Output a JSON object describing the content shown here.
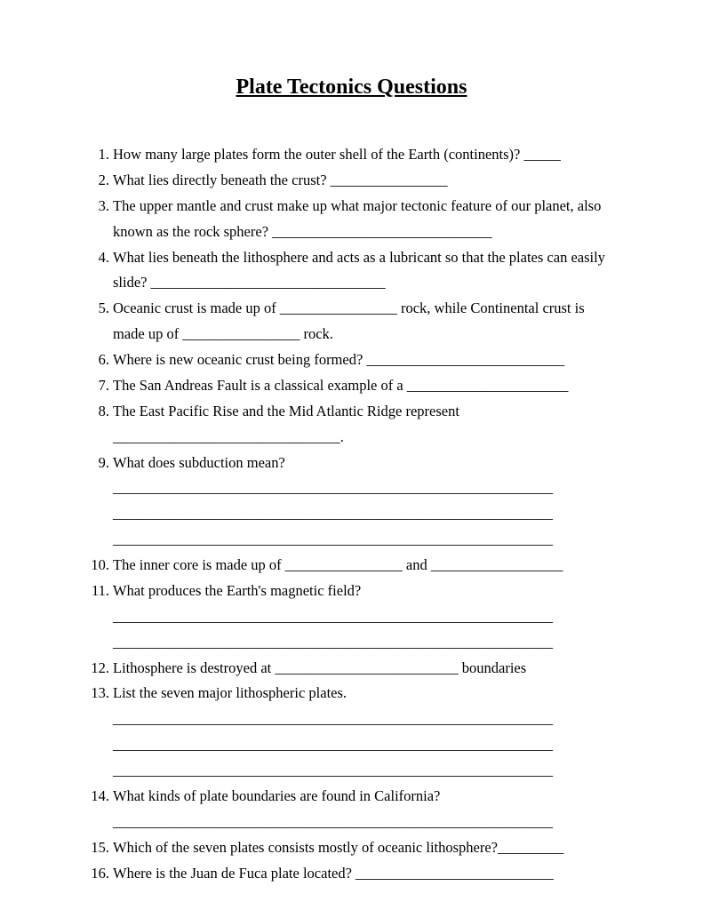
{
  "title": "Plate Tectonics Questions",
  "questions": [
    {
      "num": "1.",
      "text": "How many large plates form the outer shell of the Earth (continents)? _____"
    },
    {
      "num": "2.",
      "text": "What lies directly beneath the crust? ________________"
    },
    {
      "num": "3.",
      "text": "The upper mantle and crust make up what major tectonic feature of our planet, also known as the rock sphere? ______________________________"
    },
    {
      "num": "4.",
      "text": "What lies beneath the lithosphere and acts as a lubricant so that the plates can easily slide? ________________________________"
    },
    {
      "num": "5.",
      "text": "Oceanic crust is made up of ________________ rock, while Continental crust is made up of ________________ rock."
    },
    {
      "num": "6.",
      "text": "Where is new oceanic crust being formed? ___________________________"
    },
    {
      "num": "7.",
      "text": "The San Andreas Fault is a classical example of a ______________________"
    },
    {
      "num": "8.",
      "text": "The East Pacific Rise and the Mid Atlantic Ridge represent _______________________________."
    },
    {
      "num": "9.",
      "text": "What does subduction mean? ____________________________________________________________ ____________________________________________________________ ____________________________________________________________"
    },
    {
      "num": "10.",
      "text": "The inner core is made up of ________________ and __________________"
    },
    {
      "num": "11.",
      "text": "What produces the Earth's magnetic field? ____________________________________________________________ ____________________________________________________________"
    },
    {
      "num": "12.",
      "text": "Lithosphere is destroyed at _________________________ boundaries"
    },
    {
      "num": "13.",
      "text": "List the seven major lithospheric plates. ____________________________________________________________ ____________________________________________________________ ____________________________________________________________"
    },
    {
      "num": "14.",
      "text": "What kinds of plate boundaries are found in California? ____________________________________________________________"
    },
    {
      "num": "15.",
      "text": "Which of the seven plates consists mostly of oceanic lithosphere?_________"
    },
    {
      "num": "16.",
      "text": "Where is the Juan de Fuca plate located? ___________________________"
    }
  ]
}
